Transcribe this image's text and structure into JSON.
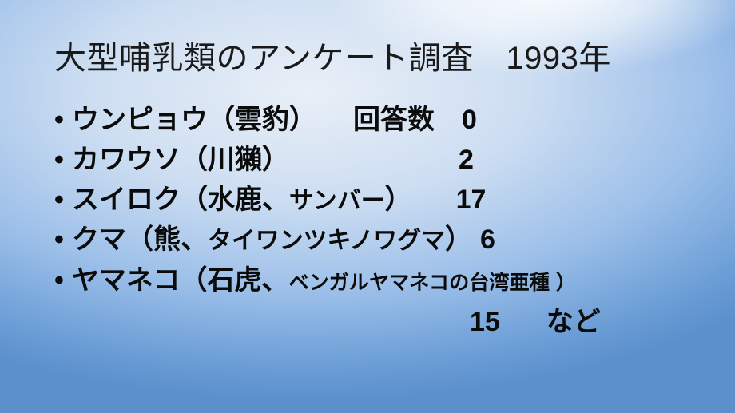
{
  "slide": {
    "title": "大型哺乳類のアンケート調査　1993年",
    "bullet_char": "•",
    "items": [
      {
        "text": "ウンピョウ（雲豹）",
        "label": "回答数",
        "count": "0"
      },
      {
        "text": "カワウソ（川獺）",
        "count": "2"
      },
      {
        "text_pre": "スイロク（水鹿、",
        "text_small": "サンバー",
        "text_post": "）",
        "count": "17"
      },
      {
        "text_pre": "クマ（熊、",
        "text_small": "タイワンツキノワグマ",
        "text_post": "）",
        "count": "6"
      },
      {
        "text_pre": "ヤマネコ（石虎、",
        "text_small": "ベンガルヤマネコの台湾亜種",
        "text_post": "）"
      }
    ],
    "footer_line": {
      "count": "15",
      "suffix": "など"
    },
    "colors": {
      "background_glow": "#ffffff",
      "background_light": "#e9eff7",
      "background_mid": "#9cbfe9",
      "background_edge": "#5b90cd",
      "title_text": "#1a1a1a",
      "body_text": "#0b0b0b"
    }
  }
}
